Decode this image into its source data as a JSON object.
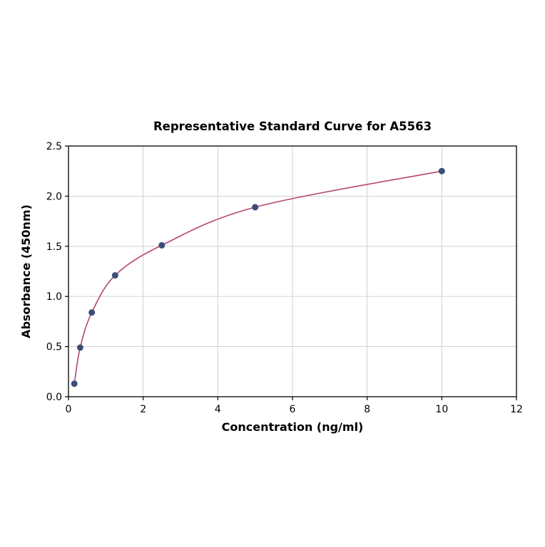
{
  "chart_data": {
    "type": "scatter",
    "has_fitted_curve": true,
    "title": "Representative Standard Curve for A5563",
    "xlabel": "Concentration (ng/ml)",
    "ylabel": "Absorbance (450nm)",
    "x": [
      0.156,
      0.313,
      0.625,
      1.25,
      2.5,
      5,
      10
    ],
    "y": [
      0.13,
      0.49,
      0.84,
      1.21,
      1.51,
      1.89,
      2.25
    ],
    "xlim": [
      0,
      12
    ],
    "ylim": [
      0,
      2.5
    ],
    "xticks": [
      0,
      2,
      4,
      6,
      8,
      10,
      12
    ],
    "xtick_labels": [
      "0",
      "2",
      "4",
      "6",
      "8",
      "10",
      "12"
    ],
    "yticks": [
      0,
      0.5,
      1,
      1.5,
      2,
      2.5
    ],
    "ytick_labels": [
      "0.0",
      "0.5",
      "1.0",
      "1.5",
      "2.0",
      "2.5"
    ],
    "grid": true,
    "legend_position": "none",
    "colors": {
      "curve": "#b5476b",
      "points": "#3c4d7a",
      "grid": "#cccccc",
      "axis": "#000000",
      "background": "#ffffff"
    }
  }
}
